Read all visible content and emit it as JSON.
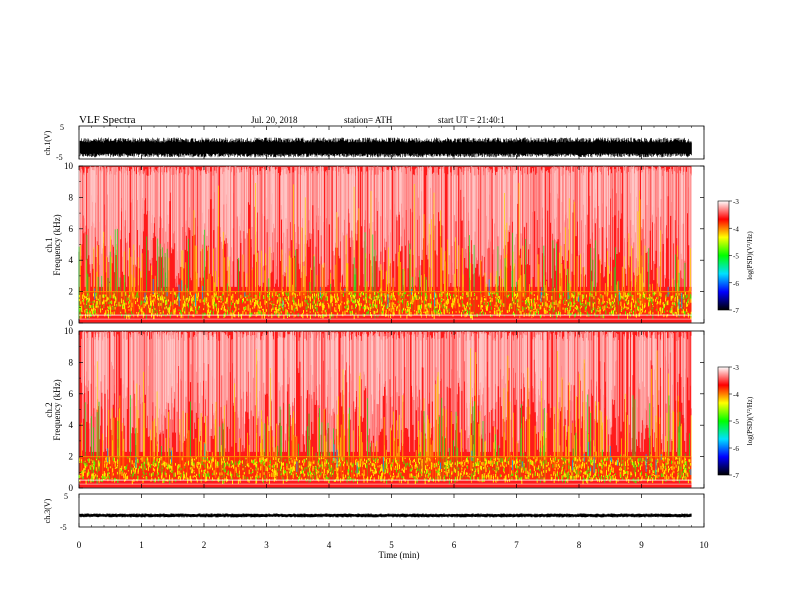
{
  "header": {
    "title": "VLF Spectra",
    "date": "Jul. 20, 2018",
    "station": "station= ATH",
    "start": "start UT = 21:40:1"
  },
  "chart_data": {
    "type": "heatmap",
    "time_axis": {
      "label": "Time (min)",
      "range": [
        0,
        10
      ],
      "ticks": [
        "0",
        "1",
        "2",
        "3",
        "4",
        "5",
        "6",
        "7",
        "8",
        "9",
        "10"
      ]
    },
    "panels": {
      "ch1_wave": {
        "ylabel": "ch.1(V)",
        "yticks": [
          "5",
          "-5"
        ],
        "ylim": [
          -5,
          5
        ],
        "amplitude_range": [
          -4.5,
          1.5
        ]
      },
      "ch1_spec": {
        "ylabel_top": "ch.1",
        "ylabel": "Frequency (kHz)",
        "yticks": [
          "10",
          "8",
          "6",
          "4",
          "2",
          "0"
        ],
        "ylim": [
          0,
          10
        ],
        "data_extent_min": 9.8,
        "band_edges_khz": [
          0.5,
          2.0
        ],
        "colorbar": {
          "label": "log(PSD)(V²/Hz)",
          "range": [
            -7,
            -3
          ],
          "ticks": [
            "-3",
            "-4",
            "-5",
            "-6",
            "-7"
          ]
        }
      },
      "ch2_spec": {
        "ylabel_top": "ch.2",
        "ylabel": "Frequency (kHz)",
        "yticks": [
          "10",
          "8",
          "6",
          "4",
          "2",
          "0"
        ],
        "ylim": [
          0,
          10
        ],
        "data_extent_min": 9.8,
        "band_edges_khz": [
          0.5,
          2.0
        ],
        "colorbar": {
          "label": "log(PSD)(V²/Hz)",
          "range": [
            -7,
            -3
          ],
          "ticks": [
            "-3",
            "-4",
            "-5",
            "-6",
            "-7"
          ]
        }
      },
      "ch3_wave": {
        "ylabel": "ch.3(V)",
        "yticks": [
          "5",
          "-5"
        ],
        "ylim": [
          -5,
          5
        ],
        "baseline": -1.5
      }
    },
    "colorscale": [
      "#000000",
      "#0000ff",
      "#00e0ff",
      "#00ff00",
      "#ffff00",
      "#ff0000",
      "#ffffff"
    ],
    "grid": false
  }
}
